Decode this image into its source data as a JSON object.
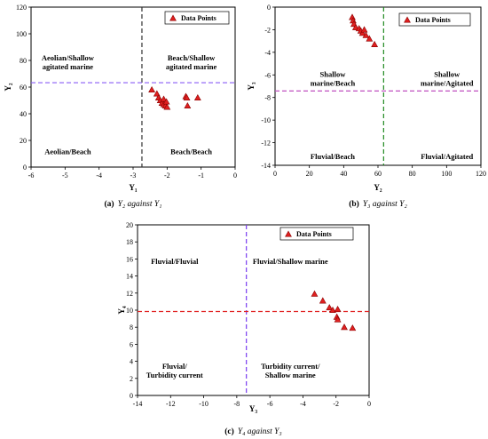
{
  "chart_data": [
    {
      "id": "a",
      "type": "scatter",
      "caption": {
        "label": "(a)",
        "text": "Y₂ against Y₁"
      },
      "xlabel": "Y₁",
      "ylabel": "Y₂",
      "xlim": [
        -6,
        0
      ],
      "ylim": [
        0,
        120
      ],
      "xticks": [
        "-6",
        "-5",
        "-4",
        "-3",
        "-2",
        "-1",
        "0"
      ],
      "yticks": [
        "0",
        "20",
        "40",
        "60",
        "80",
        "100",
        "120"
      ],
      "legend": {
        "label": "Data Points",
        "position": "top-right"
      },
      "ref_lines": {
        "vertical_x": -2.74,
        "horizontal_y": 63.28
      },
      "regions": {
        "top_left": [
          "Aeolian/Shallow",
          "agitated marine"
        ],
        "top_right": [
          "Beach/Shallow",
          "agitated marine"
        ],
        "bottom_left": [
          "Aeolian/Beach"
        ],
        "bottom_right": [
          "Beach/Beach"
        ]
      },
      "series": [
        {
          "points": [
            [
              -2.45,
              58
            ],
            [
              -2.3,
              55
            ],
            [
              -2.25,
              52
            ],
            [
              -2.2,
              50
            ],
            [
              -2.15,
              48
            ],
            [
              -2.1,
              47
            ],
            [
              -2.05,
              46
            ],
            [
              -2.0,
              45
            ],
            [
              -2.1,
              51
            ],
            [
              -2.02,
              49
            ],
            [
              -1.45,
              53
            ],
            [
              -1.42,
              52
            ],
            [
              -1.4,
              46
            ],
            [
              -1.1,
              52
            ]
          ]
        }
      ]
    },
    {
      "id": "b",
      "type": "scatter",
      "caption": {
        "label": "(b)",
        "text": "Y₃ against Y₂"
      },
      "xlabel": "Y₂",
      "ylabel": "Y₃",
      "xlim": [
        0,
        120
      ],
      "ylim": [
        -14,
        0
      ],
      "xticks": [
        "0",
        "20",
        "40",
        "60",
        "80",
        "100",
        "120"
      ],
      "yticks": [
        "0",
        "-2",
        "-4",
        "-6",
        "-8",
        "-10",
        "-12",
        "-14"
      ],
      "legend": {
        "label": "Data Points",
        "position": "top-right"
      },
      "ref_lines": {
        "vertical_x": 63.28,
        "horizontal_y": -7.42
      },
      "regions": {
        "top_left": [
          "Shallow",
          "marine/Beach"
        ],
        "top_right": [
          "Shallow",
          "marine/Agitated"
        ],
        "bottom_left": [
          "Fluvial/Beach"
        ],
        "bottom_right": [
          "Fluvial/Agitated"
        ]
      },
      "series": [
        {
          "points": [
            [
              45,
              -0.9
            ],
            [
              45.5,
              -1.2
            ],
            [
              46,
              -1.5
            ],
            [
              47,
              -1.8
            ],
            [
              49,
              -1.9
            ],
            [
              50,
              -2.1
            ],
            [
              51,
              -2.3
            ],
            [
              52,
              -2.0
            ],
            [
              53,
              -2.5
            ],
            [
              55,
              -2.8
            ],
            [
              58,
              -3.3
            ]
          ]
        }
      ]
    },
    {
      "id": "c",
      "type": "scatter",
      "caption": {
        "label": "(c)",
        "text": "Y₄ against Y₃"
      },
      "xlabel": "Y₃",
      "ylabel": "Y₄",
      "xlim": [
        -14,
        0
      ],
      "ylim": [
        0,
        20
      ],
      "xticks": [
        "-14",
        "-12",
        "-10",
        "-8",
        "-6",
        "-4",
        "-2",
        "0"
      ],
      "yticks": [
        "0",
        "2",
        "4",
        "6",
        "8",
        "10",
        "12",
        "14",
        "16",
        "18",
        "20"
      ],
      "legend": {
        "label": "Data Points",
        "position": "top-right"
      },
      "ref_lines": {
        "vertical_x": -7.42,
        "horizontal_y": 9.84
      },
      "regions": {
        "top_left": [
          "Fluvial/Fluvial"
        ],
        "top_right": [
          "Fluvial/Shallow marine"
        ],
        "bottom_left": [
          "Fluvial/",
          "Turbidity current"
        ],
        "bottom_right": [
          "Turbidity current/",
          "Shallow marine"
        ]
      },
      "series": [
        {
          "points": [
            [
              -3.3,
              11.9
            ],
            [
              -2.8,
              11.1
            ],
            [
              -2.4,
              10.3
            ],
            [
              -2.2,
              10.0
            ],
            [
              -1.9,
              10.1
            ],
            [
              -1.95,
              9.2
            ],
            [
              -1.9,
              8.9
            ],
            [
              -1.5,
              8.0
            ],
            [
              -1.0,
              7.9
            ]
          ]
        }
      ]
    }
  ],
  "colors": {
    "marker_fill": "#e02020",
    "marker_edge": "#8a0000",
    "ref_v_a": "#333333",
    "ref_h_a": "#8a5cf6",
    "ref_v_b": "#1f8a1f",
    "ref_h_b": "#c04fc0",
    "ref_v_c": "#7a3cf0",
    "ref_h_c": "#e02020"
  }
}
